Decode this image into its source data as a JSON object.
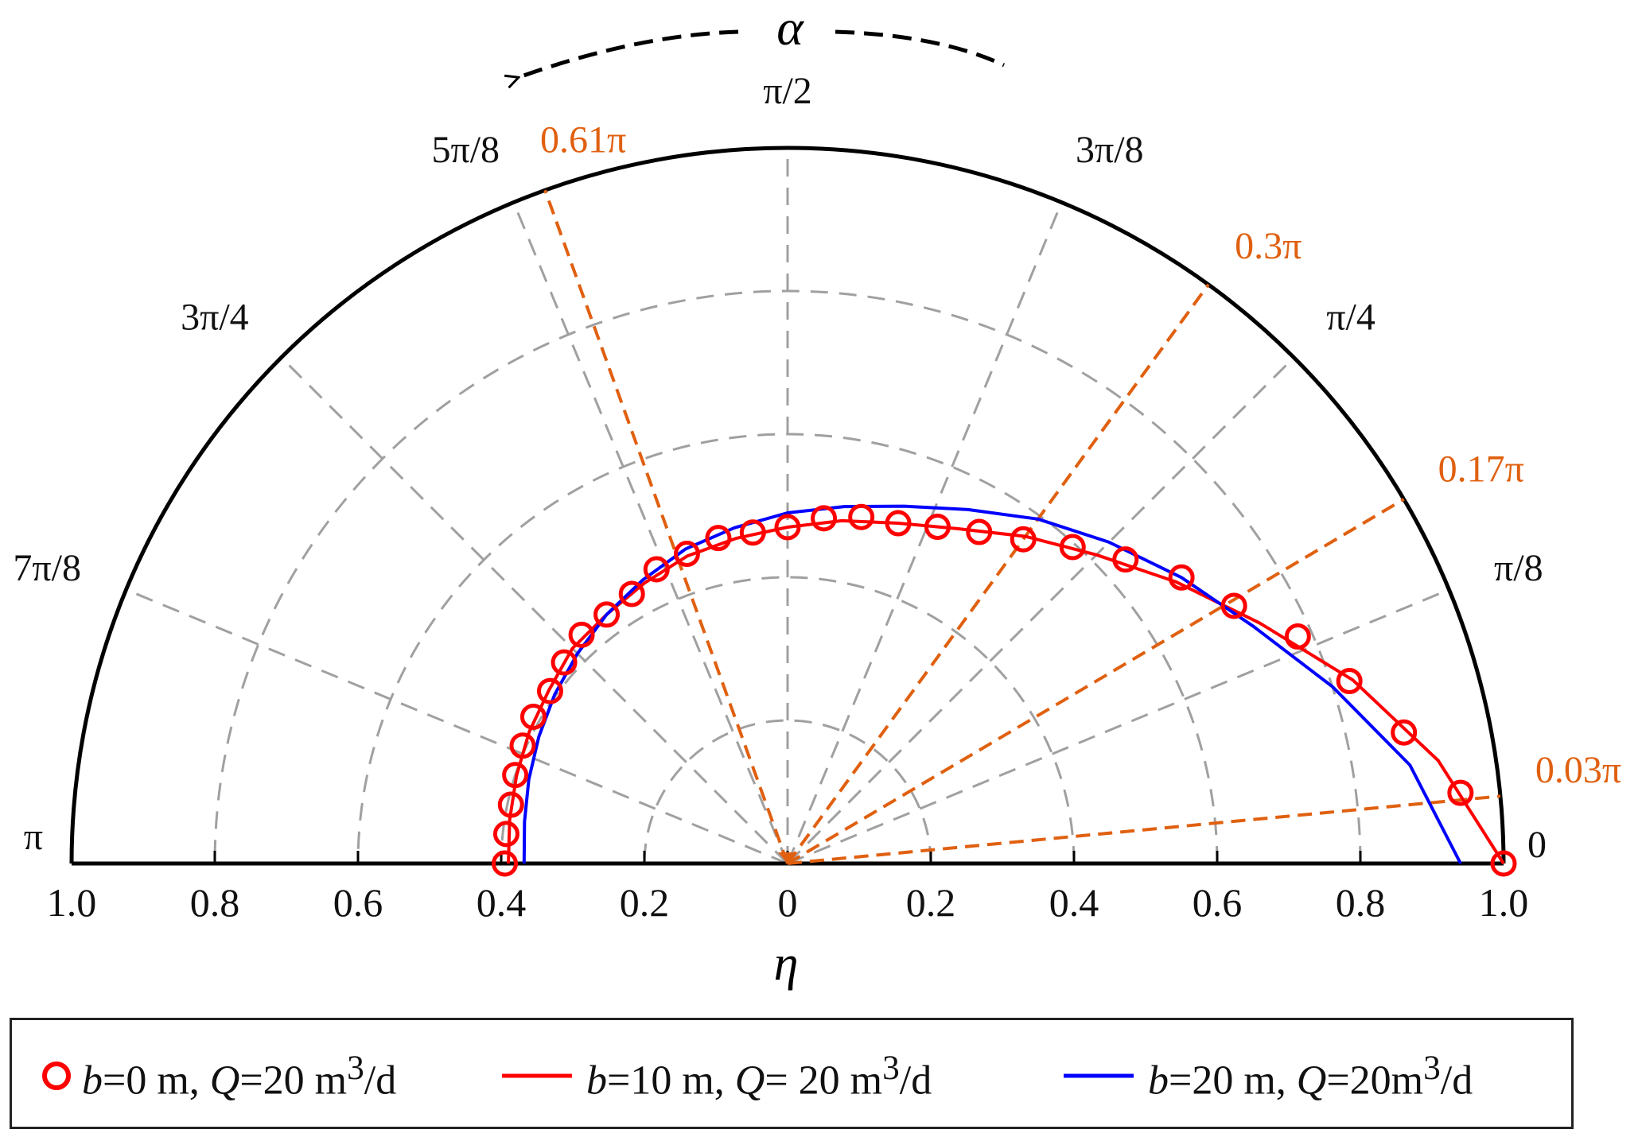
{
  "chart_data": {
    "type": "polar-semicircle",
    "direction_label": "α",
    "radial_axis_label": "η",
    "radial_range": [
      0,
      1.0
    ],
    "radial_tick_labels_left": [
      "1.0",
      "0.8",
      "0.6",
      "0.4",
      "0.2"
    ],
    "center_tick_label": "0",
    "radial_tick_labels_right": [
      "0.2",
      "0.4",
      "0.6",
      "0.8",
      "1.0"
    ],
    "radial_tick_values": [
      0.2,
      0.4,
      0.6,
      0.8,
      1.0
    ],
    "angle_labels": [
      {
        "text": "0",
        "angle": 0.0
      },
      {
        "text": "π/8",
        "angle": 0.125
      },
      {
        "text": "π/4",
        "angle": 0.25
      },
      {
        "text": "3π/8",
        "angle": 0.375
      },
      {
        "text": "π/2",
        "angle": 0.5
      },
      {
        "text": "5π/8",
        "angle": 0.625
      },
      {
        "text": "3π/4",
        "angle": 0.75
      },
      {
        "text": "7π/8",
        "angle": 0.875
      },
      {
        "text": "π",
        "angle": 1.0
      }
    ],
    "highlighted_angles": [
      {
        "text": "0.03π",
        "angle": 0.03
      },
      {
        "text": "0.17π",
        "angle": 0.17
      },
      {
        "text": "0.3π",
        "angle": 0.3
      },
      {
        "text": "0.61π",
        "angle": 0.61
      }
    ],
    "angle_unit": "fraction of π",
    "series": [
      {
        "name": "b=0 m, Q=20 m³/d",
        "style": "circles",
        "color": "#ff0000",
        "points": [
          {
            "angle": 0.0,
            "r": 1.0
          },
          {
            "angle": 0.0333,
            "r": 0.945
          },
          {
            "angle": 0.0667,
            "r": 0.88
          },
          {
            "angle": 0.1,
            "r": 0.825
          },
          {
            "angle": 0.1333,
            "r": 0.78
          },
          {
            "angle": 0.1667,
            "r": 0.72
          },
          {
            "angle": 0.2,
            "r": 0.68
          },
          {
            "angle": 0.2333,
            "r": 0.635
          },
          {
            "angle": 0.2667,
            "r": 0.595
          },
          {
            "angle": 0.3,
            "r": 0.56
          },
          {
            "angle": 0.3333,
            "r": 0.535
          },
          {
            "angle": 0.3667,
            "r": 0.515
          },
          {
            "angle": 0.4,
            "r": 0.5
          },
          {
            "angle": 0.4333,
            "r": 0.495
          },
          {
            "angle": 0.4667,
            "r": 0.485
          },
          {
            "angle": 0.5,
            "r": 0.47
          },
          {
            "angle": 0.5333,
            "r": 0.465
          },
          {
            "angle": 0.5667,
            "r": 0.465
          },
          {
            "angle": 0.6,
            "r": 0.455
          },
          {
            "angle": 0.6333,
            "r": 0.45
          },
          {
            "angle": 0.6667,
            "r": 0.435
          },
          {
            "angle": 0.7,
            "r": 0.43
          },
          {
            "angle": 0.7333,
            "r": 0.43
          },
          {
            "angle": 0.7667,
            "r": 0.42
          },
          {
            "angle": 0.8,
            "r": 0.41
          },
          {
            "angle": 0.8333,
            "r": 0.41
          },
          {
            "angle": 0.8667,
            "r": 0.405
          },
          {
            "angle": 0.9,
            "r": 0.4
          },
          {
            "angle": 0.9333,
            "r": 0.395
          },
          {
            "angle": 0.9667,
            "r": 0.395
          },
          {
            "angle": 1.0,
            "r": 0.395
          }
        ]
      },
      {
        "name": "b=10 m, Q= 20 m³/d",
        "style": "line",
        "color": "#ff0000",
        "points": [
          {
            "angle": 0.0,
            "r": 1.0
          },
          {
            "angle": 0.05,
            "r": 0.92
          },
          {
            "angle": 0.1,
            "r": 0.83
          },
          {
            "angle": 0.15,
            "r": 0.74
          },
          {
            "angle": 0.2,
            "r": 0.67
          },
          {
            "angle": 0.25,
            "r": 0.61
          },
          {
            "angle": 0.3,
            "r": 0.565
          },
          {
            "angle": 0.35,
            "r": 0.525
          },
          {
            "angle": 0.4,
            "r": 0.5
          },
          {
            "angle": 0.45,
            "r": 0.485
          },
          {
            "angle": 0.5,
            "r": 0.47
          },
          {
            "angle": 0.55,
            "r": 0.46
          },
          {
            "angle": 0.6,
            "r": 0.452
          },
          {
            "angle": 0.65,
            "r": 0.44
          },
          {
            "angle": 0.7,
            "r": 0.43
          },
          {
            "angle": 0.75,
            "r": 0.425
          },
          {
            "angle": 0.8,
            "r": 0.412
          },
          {
            "angle": 0.85,
            "r": 0.405
          },
          {
            "angle": 0.9,
            "r": 0.398
          },
          {
            "angle": 0.95,
            "r": 0.393
          },
          {
            "angle": 1.0,
            "r": 0.39
          }
        ]
      },
      {
        "name": "b=20 m, Q=20m³/d",
        "style": "line",
        "color": "#0000ff",
        "points": [
          {
            "angle": 0.0,
            "r": 0.94
          },
          {
            "angle": 0.05,
            "r": 0.88
          },
          {
            "angle": 0.1,
            "r": 0.8
          },
          {
            "angle": 0.15,
            "r": 0.73
          },
          {
            "angle": 0.2,
            "r": 0.68
          },
          {
            "angle": 0.25,
            "r": 0.635
          },
          {
            "angle": 0.3,
            "r": 0.595
          },
          {
            "angle": 0.35,
            "r": 0.555
          },
          {
            "angle": 0.4,
            "r": 0.525
          },
          {
            "angle": 0.45,
            "r": 0.505
          },
          {
            "angle": 0.5,
            "r": 0.49
          },
          {
            "angle": 0.55,
            "r": 0.475
          },
          {
            "angle": 0.6,
            "r": 0.462
          },
          {
            "angle": 0.65,
            "r": 0.445
          },
          {
            "angle": 0.7,
            "r": 0.43
          },
          {
            "angle": 0.75,
            "r": 0.415
          },
          {
            "angle": 0.8,
            "r": 0.402
          },
          {
            "angle": 0.85,
            "r": 0.39
          },
          {
            "angle": 0.9,
            "r": 0.38
          },
          {
            "angle": 0.95,
            "r": 0.372
          },
          {
            "angle": 1.0,
            "r": 0.368
          }
        ]
      }
    ],
    "legend_position": "bottom",
    "colors": {
      "axis": "#000000",
      "grid": "#a0a0a0",
      "highlight": "#e06010",
      "red": "#ff0000",
      "blue": "#0000ff"
    }
  },
  "legend": {
    "item1": {
      "var1": "b",
      "mid1": "=0 m, ",
      "var2": "Q",
      "mid2": "=20 m",
      "sup": "3",
      "tail": "/d"
    },
    "item2": {
      "var1": "b",
      "mid1": "=10 m, ",
      "var2": "Q",
      "mid2": "= 20 m",
      "sup": "3",
      "tail": "/d"
    },
    "item3": {
      "var1": "b",
      "mid1": "=20 m, ",
      "var2": "Q",
      "mid2": "=20m",
      "sup": "3",
      "tail": "/d"
    }
  }
}
